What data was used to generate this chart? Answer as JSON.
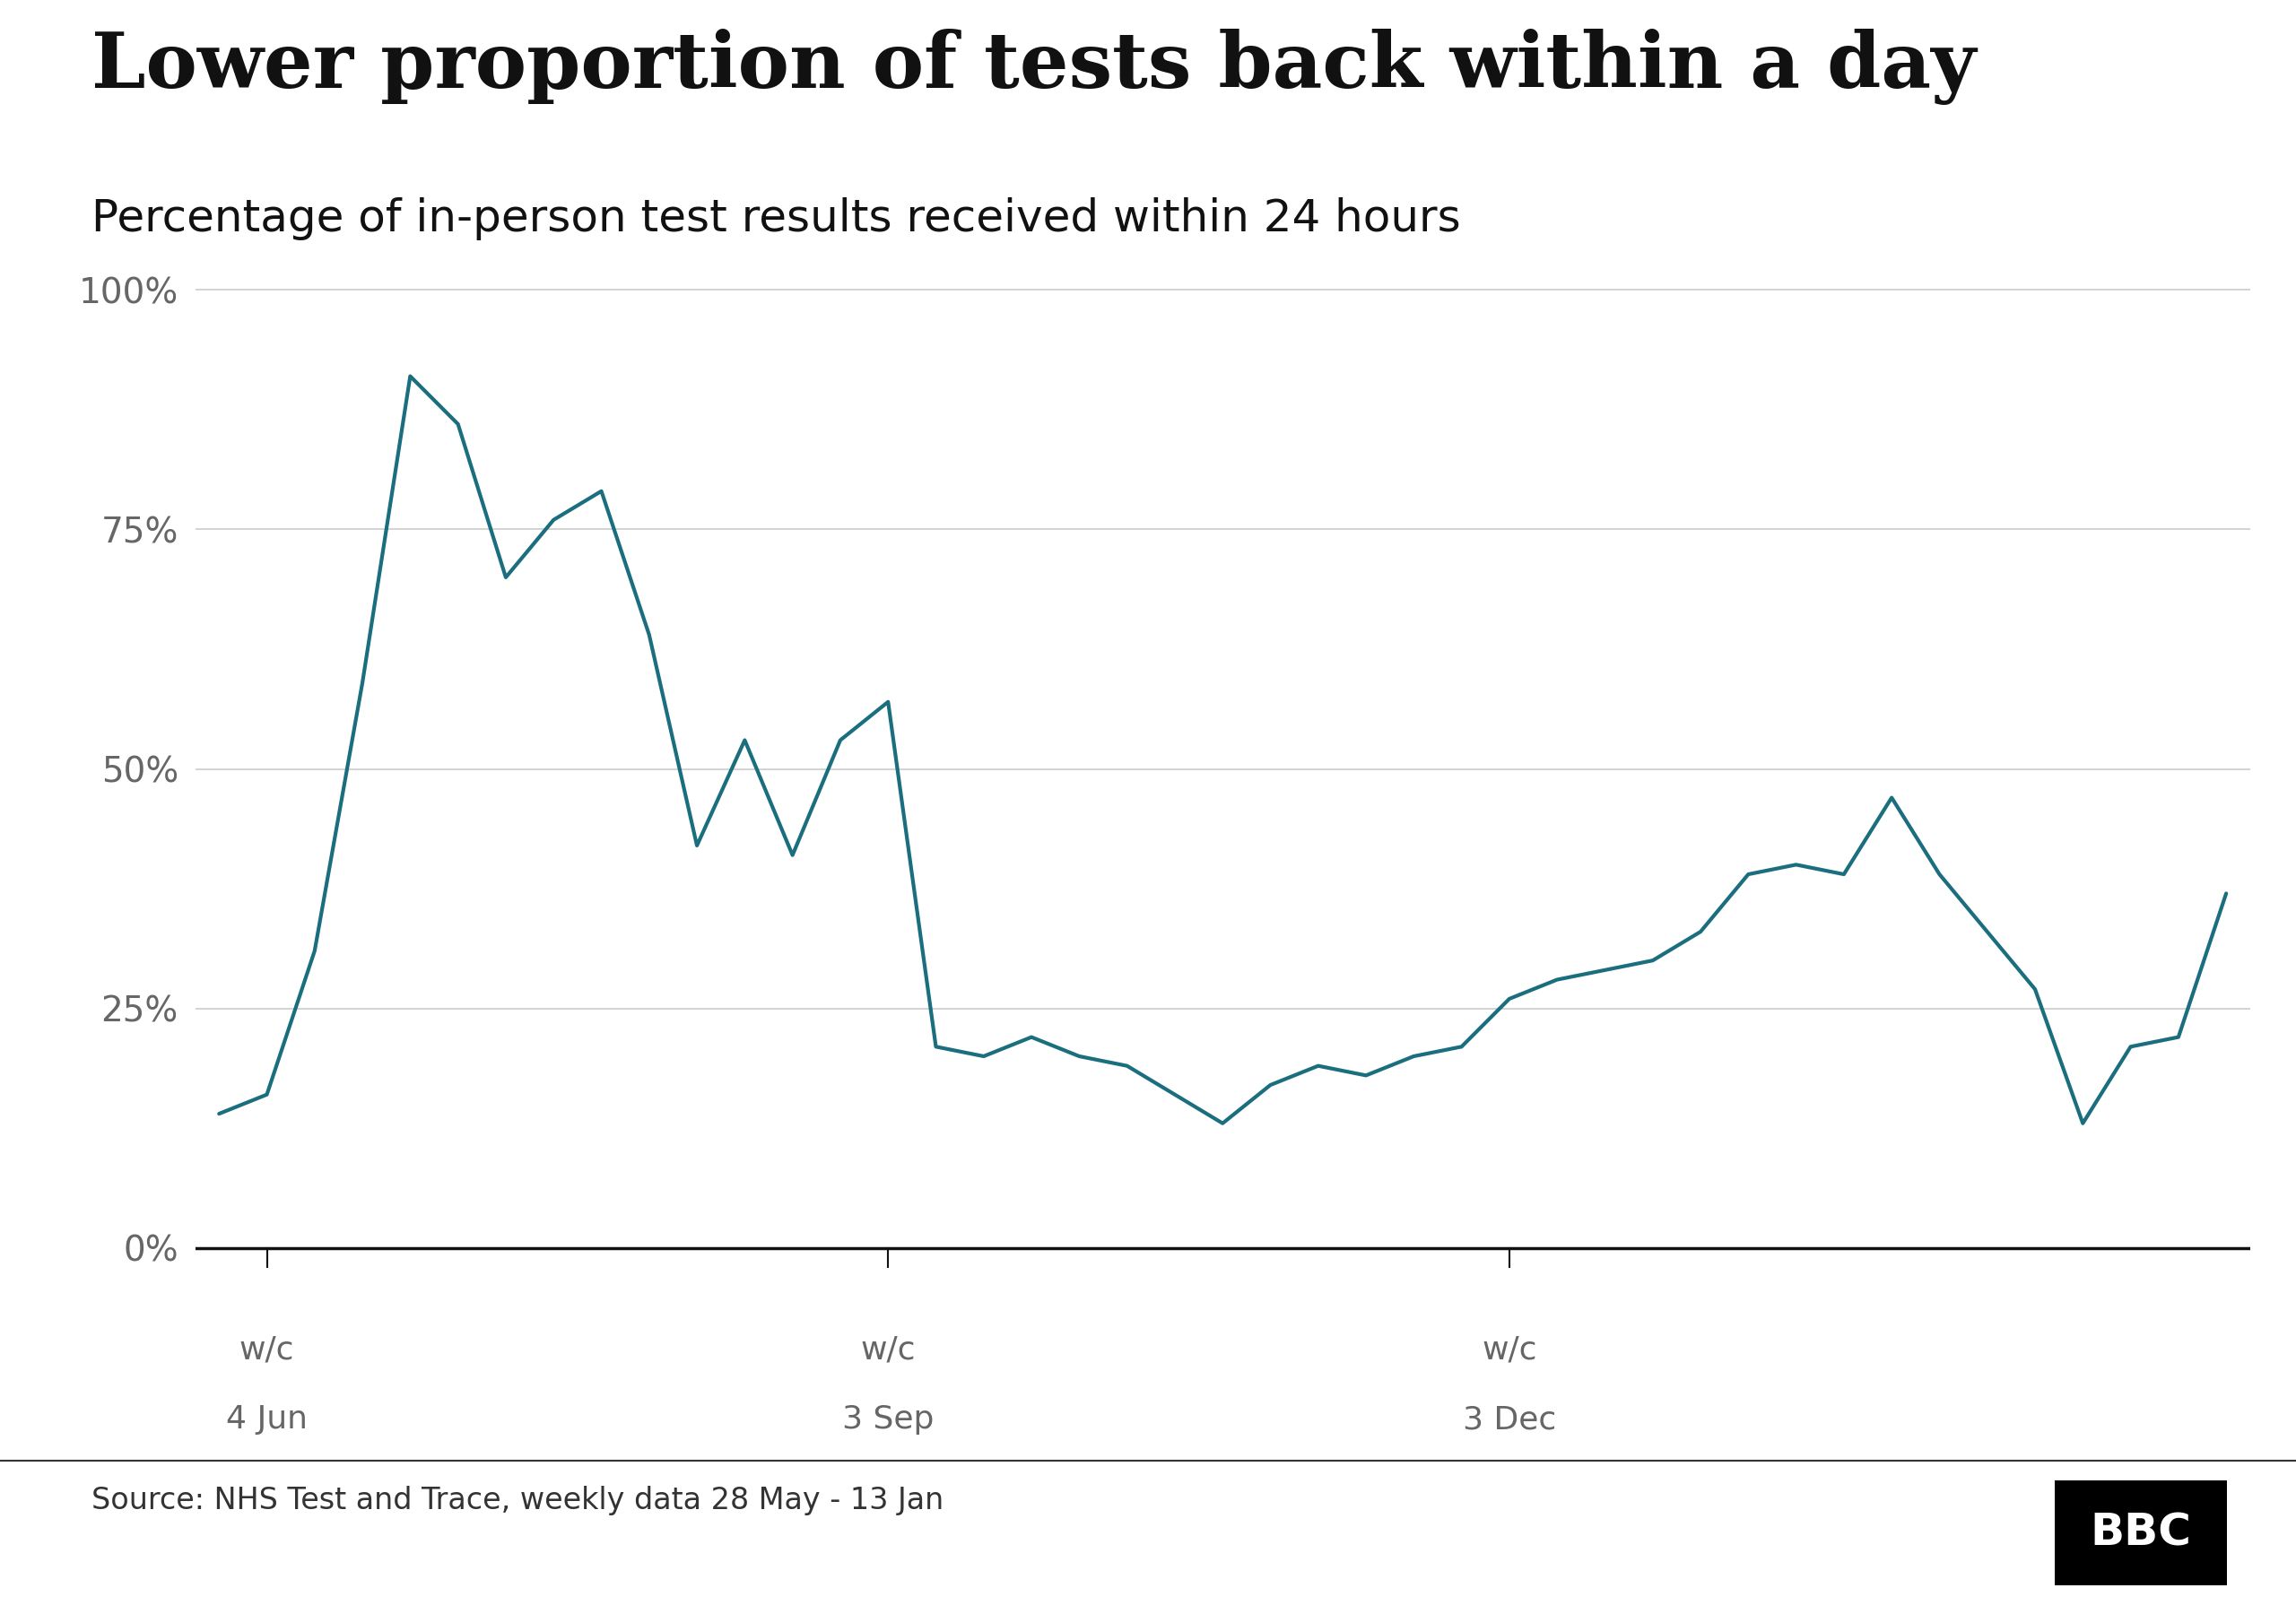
{
  "title": "Lower proportion of tests back within a day",
  "subtitle": "Percentage of in-person test results received within 24 hours",
  "source": "Source: NHS Test and Trace, weekly data 28 May - 13 Jan",
  "line_color": "#1a6e7e",
  "background_color": "#ffffff",
  "y_ticks": [
    0,
    25,
    50,
    75,
    100
  ],
  "tick_label_color": "#666666",
  "tick_indices": [
    1,
    14,
    27
  ],
  "tick_top_labels": [
    "w/c",
    "w/c",
    "w/c"
  ],
  "tick_bottom_labels": [
    "4 Jun",
    "3 Sep",
    "3 Dec"
  ],
  "values": [
    14,
    16,
    31,
    59,
    91,
    86,
    70,
    76,
    79,
    64,
    42,
    53,
    41,
    53,
    57,
    21,
    20,
    22,
    20,
    19,
    16,
    13,
    17,
    19,
    18,
    20,
    21,
    26,
    28,
    29,
    30,
    33,
    39,
    40,
    39,
    47,
    39,
    33,
    27,
    13,
    21,
    22,
    37
  ]
}
